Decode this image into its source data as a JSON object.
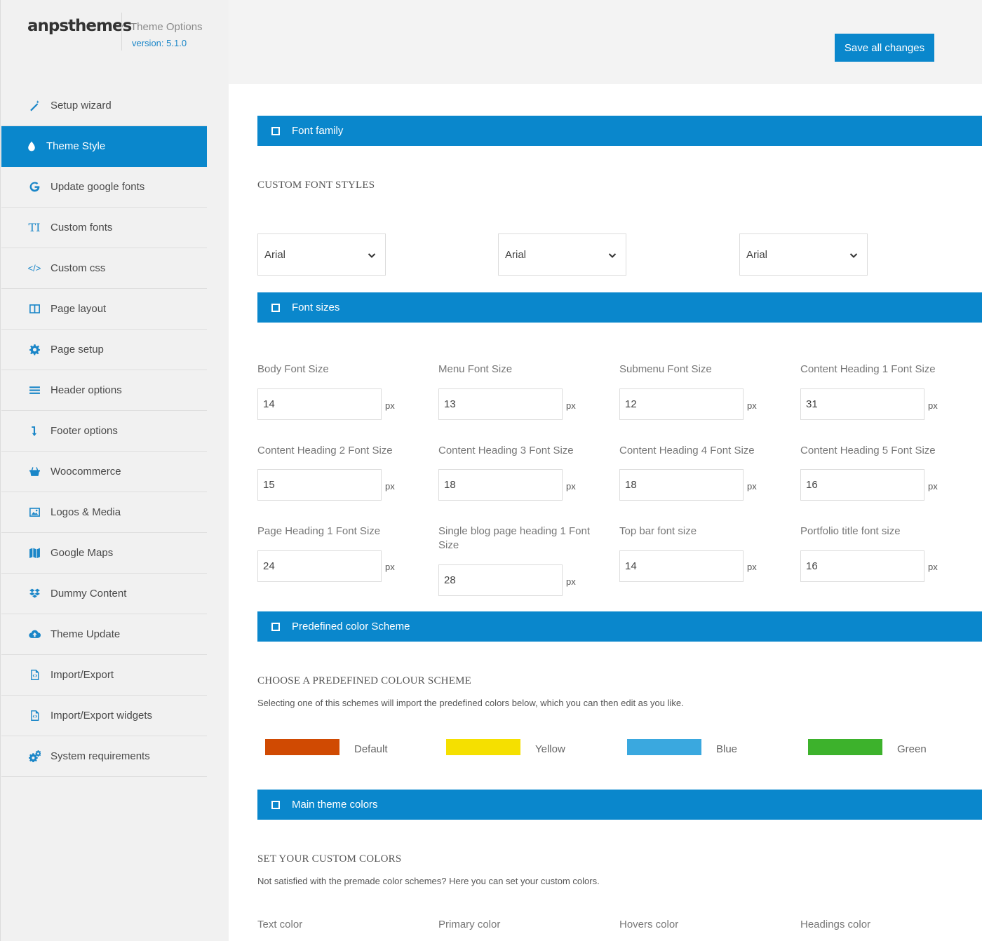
{
  "brand": {
    "name": "anpsthemes",
    "subtitle": "Theme Options",
    "version": "version: 5.1.0"
  },
  "header": {
    "save_label": "Save all changes"
  },
  "sidebar": {
    "items": [
      {
        "label": "Setup wizard",
        "icon": "magic-wand-icon"
      },
      {
        "label": "Theme Style",
        "icon": "droplet-icon",
        "active": true
      },
      {
        "label": "Update google fonts",
        "icon": "google-icon"
      },
      {
        "label": "Custom fonts",
        "icon": "text-icon"
      },
      {
        "label": "Custom css",
        "icon": "code-icon"
      },
      {
        "label": "Page layout",
        "icon": "columns-icon"
      },
      {
        "label": "Page setup",
        "icon": "gear-icon"
      },
      {
        "label": "Header options",
        "icon": "menu-lines-icon"
      },
      {
        "label": "Footer options",
        "icon": "arrow-down-icon"
      },
      {
        "label": "Woocommerce",
        "icon": "basket-icon"
      },
      {
        "label": "Logos & Media",
        "icon": "image-icon"
      },
      {
        "label": "Google Maps",
        "icon": "map-icon"
      },
      {
        "label": "Dummy Content",
        "icon": "dropbox-icon"
      },
      {
        "label": "Theme Update",
        "icon": "cloud-upload-icon"
      },
      {
        "label": "Import/Export",
        "icon": "code-file-icon"
      },
      {
        "label": "Import/Export widgets",
        "icon": "code-file-icon"
      },
      {
        "label": "System requirements",
        "icon": "cogs-icon"
      }
    ]
  },
  "font_family": {
    "title": "Font family",
    "heading": "CUSTOM FONT STYLES",
    "selects": [
      "Arial",
      "Arial",
      "Arial"
    ]
  },
  "font_sizes": {
    "title": "Font sizes",
    "unit": "px",
    "fields": [
      {
        "label": "Body Font Size",
        "value": "14"
      },
      {
        "label": "Menu Font Size",
        "value": "13"
      },
      {
        "label": "Submenu Font Size",
        "value": "12"
      },
      {
        "label": "Content Heading 1 Font Size",
        "value": "31"
      },
      {
        "label": "Content Heading 2 Font Size",
        "value": "15"
      },
      {
        "label": "Content Heading 3 Font Size",
        "value": "18"
      },
      {
        "label": "Content Heading 4 Font Size",
        "value": "18"
      },
      {
        "label": "Content Heading 5 Font Size",
        "value": "16"
      },
      {
        "label": "Page Heading 1 Font Size",
        "value": "24"
      },
      {
        "label": "Single blog page heading 1 Font Size",
        "value": "28"
      },
      {
        "label": "Top bar font size",
        "value": "14"
      },
      {
        "label": "Portfolio title font size",
        "value": "16"
      }
    ]
  },
  "color_scheme": {
    "title": "Predefined color Scheme",
    "heading": "CHOOSE A PREDEFINED COLOUR SCHEME",
    "description": "Selecting one of this schemes will import the predefined colors below, which you can then edit as you like.",
    "schemes": [
      {
        "label": "Default",
        "color": "#d04a02"
      },
      {
        "label": "Yellow",
        "color": "#f5e000"
      },
      {
        "label": "Blue",
        "color": "#3aa8df"
      },
      {
        "label": "Green",
        "color": "#3db22c"
      }
    ]
  },
  "main_colors": {
    "title": "Main theme colors",
    "heading": "SET YOUR CUSTOM COLORS",
    "description": "Not satisfied with the premade color schemes? Here you can set your custom colors.",
    "labels": [
      "Text color",
      "Primary color",
      "Hovers color",
      "Headings color"
    ]
  },
  "accent_color": "#0a87cc"
}
